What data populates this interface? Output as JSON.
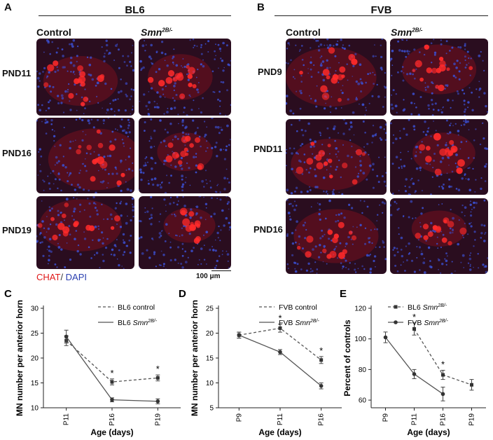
{
  "panelA": {
    "letter": "A",
    "title": "BL6",
    "col_control": "Control",
    "col_mutant_base": "Smn",
    "col_mutant_sup": "2B/-",
    "rows": [
      "PND11",
      "PND16",
      "PND19"
    ]
  },
  "panelB": {
    "letter": "B",
    "title": "FVB",
    "col_control": "Control",
    "col_mutant_base": "Smn",
    "col_mutant_sup": "2B/-",
    "rows": [
      "PND9",
      "PND11",
      "PND16"
    ]
  },
  "stain_legend": {
    "chat": "CHAT",
    "sep": "/ ",
    "dapi": "DAPI"
  },
  "scale_bar": "100 μm",
  "colors": {
    "stain_red": "#e01818",
    "stain_blue": "#2a3fb0",
    "tissue_bg": "#2a0d1f"
  },
  "chart_data": [
    {
      "panel": "C",
      "type": "line",
      "categories": [
        "P11",
        "P16",
        "P19"
      ],
      "xlabel": "Age (days)",
      "ylabel": "MN number per anterior horn",
      "ylim": [
        10,
        30
      ],
      "yticks": [
        10,
        15,
        20,
        25,
        30
      ],
      "legend_position": "top-right",
      "series": [
        {
          "name": "BL6 control",
          "style": "dashed",
          "values": [
            23.5,
            15.2,
            16.0
          ],
          "errors": [
            1.0,
            0.6,
            0.6
          ]
        },
        {
          "name": "BL6 Smn2B/-",
          "name_base": "BL6 ",
          "name_ital": "Smn",
          "name_sup": "2B/-",
          "style": "solid",
          "values": [
            24.3,
            11.6,
            11.3
          ],
          "errors": [
            1.3,
            0.4,
            0.5
          ]
        }
      ],
      "significance": [
        {
          "category": "P16",
          "label": "*"
        },
        {
          "category": "P19",
          "label": "*"
        }
      ]
    },
    {
      "panel": "D",
      "type": "line",
      "categories": [
        "P9",
        "P11",
        "P16"
      ],
      "xlabel": "Age (days)",
      "ylabel": "MN number per anterior horn",
      "ylim": [
        5,
        25
      ],
      "yticks": [
        5,
        10,
        15,
        20,
        25
      ],
      "legend_position": "top-right",
      "series": [
        {
          "name": "FVB control",
          "style": "dashed",
          "values": [
            19.6,
            21.0,
            14.6
          ],
          "errors": [
            0.6,
            0.8,
            0.7
          ]
        },
        {
          "name": "FVB Smn2B/-",
          "name_base": "FVB ",
          "name_ital": "Smn",
          "name_sup": "2B/-",
          "style": "solid",
          "values": [
            19.6,
            16.2,
            9.4
          ],
          "errors": [
            0.6,
            0.5,
            0.6
          ]
        }
      ],
      "significance": [
        {
          "category": "P11",
          "label": "*"
        },
        {
          "category": "P16",
          "label": "*"
        }
      ]
    },
    {
      "panel": "E",
      "type": "line",
      "categories": [
        "P9",
        "P11",
        "P16",
        "P19"
      ],
      "xlabel": "Age (days)",
      "ylabel": "Percent of controls",
      "ylim": [
        55,
        120
      ],
      "yticks": [
        60,
        80,
        100,
        120
      ],
      "legend_position": "top-right",
      "series": [
        {
          "name": "BL6 Smn2B/-",
          "name_base": "BL6 ",
          "name_ital": "Smn",
          "name_sup": "2B/-",
          "style": "dashed",
          "x": [
            "P11",
            "P16",
            "P19"
          ],
          "values": [
            106.5,
            76.5,
            70.0
          ],
          "errors": [
            4.0,
            3.0,
            3.5
          ]
        },
        {
          "name": "FVB Smn2B/-",
          "name_base": "FVB ",
          "name_ital": "Smn",
          "name_sup": "2B/-",
          "style": "solid",
          "x": [
            "P9",
            "P11",
            "P16"
          ],
          "values": [
            101.0,
            77.0,
            64.0
          ],
          "errors": [
            3.5,
            3.0,
            4.5
          ]
        }
      ],
      "significance": [
        {
          "category": "P11",
          "label": "*"
        },
        {
          "category": "P16",
          "label": "*"
        }
      ]
    }
  ]
}
